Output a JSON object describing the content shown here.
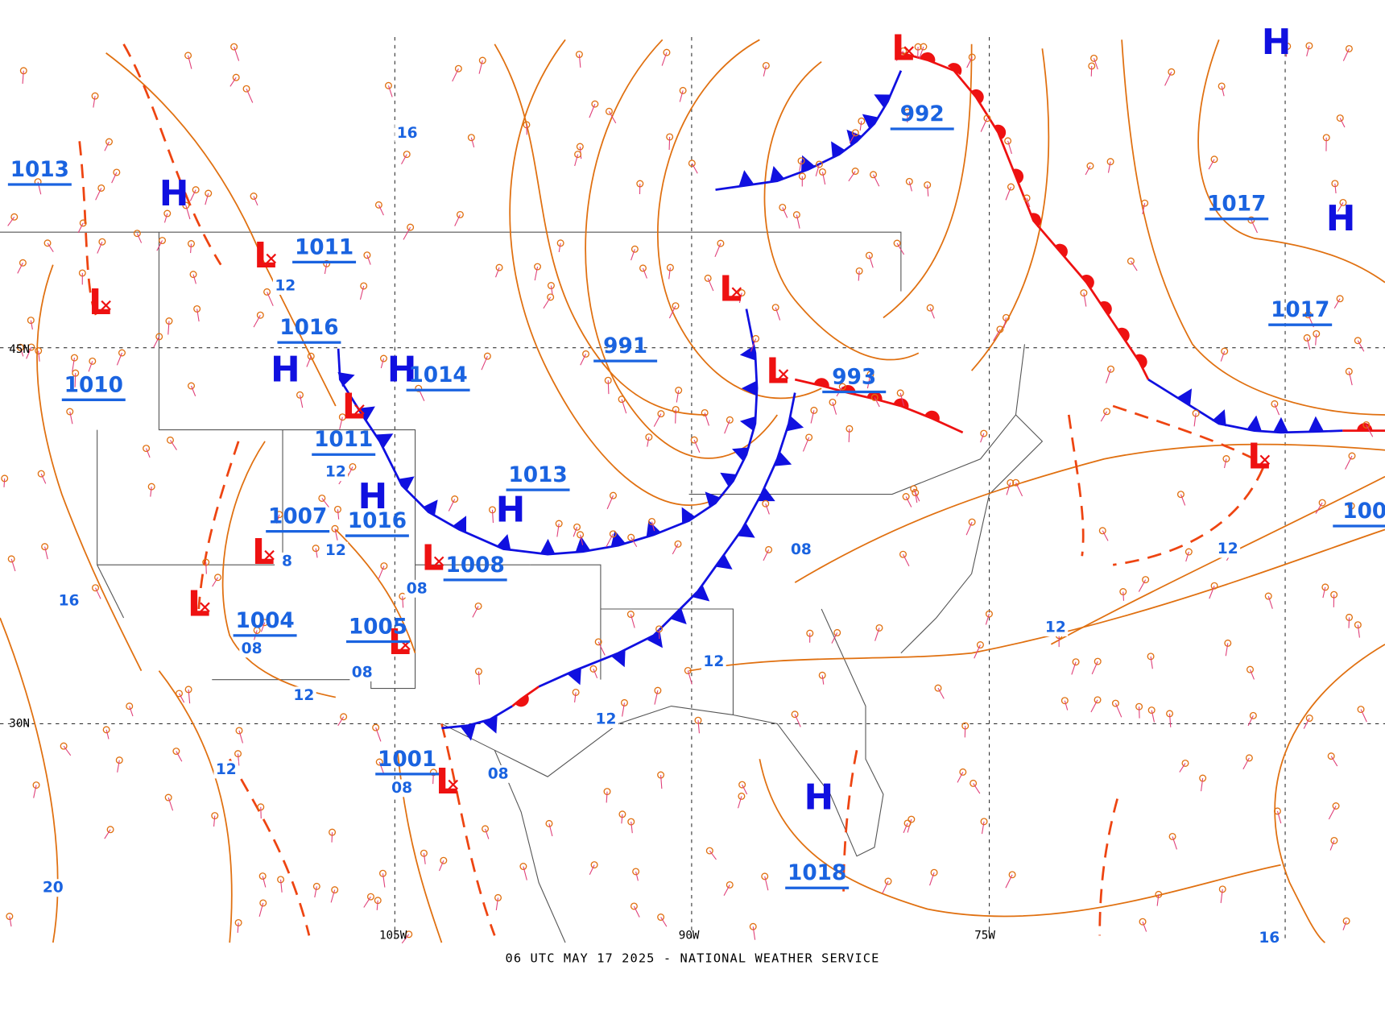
{
  "map": {
    "footer": "06 UTC MAY 17 2025 - NATIONAL WEATHER SERVICE",
    "grid_labels": [
      "45N",
      "30N",
      "105W",
      "90W",
      "75W"
    ],
    "high_letters": [
      "H",
      "H",
      "H",
      "H",
      "H",
      "H",
      "H",
      "H"
    ],
    "low_letters": [
      "L",
      "L",
      "L",
      "L",
      "L",
      "L",
      "L",
      "L",
      "L",
      "L",
      "L",
      "L"
    ],
    "pressures": [
      "1013",
      "1011",
      "1016",
      "1010",
      "1014",
      "1011",
      "1007",
      "1016",
      "1013",
      "1008",
      "1004",
      "1005",
      "1001",
      "991",
      "992",
      "993",
      "1017",
      "1017",
      "1018",
      "100"
    ],
    "isobar_labels": [
      "16",
      "12",
      "12",
      "12",
      "8",
      "08",
      "08",
      "08",
      "12",
      "16",
      "12",
      "08",
      "08",
      "12",
      "12",
      "08",
      "12",
      "12",
      "20",
      "16"
    ]
  }
}
